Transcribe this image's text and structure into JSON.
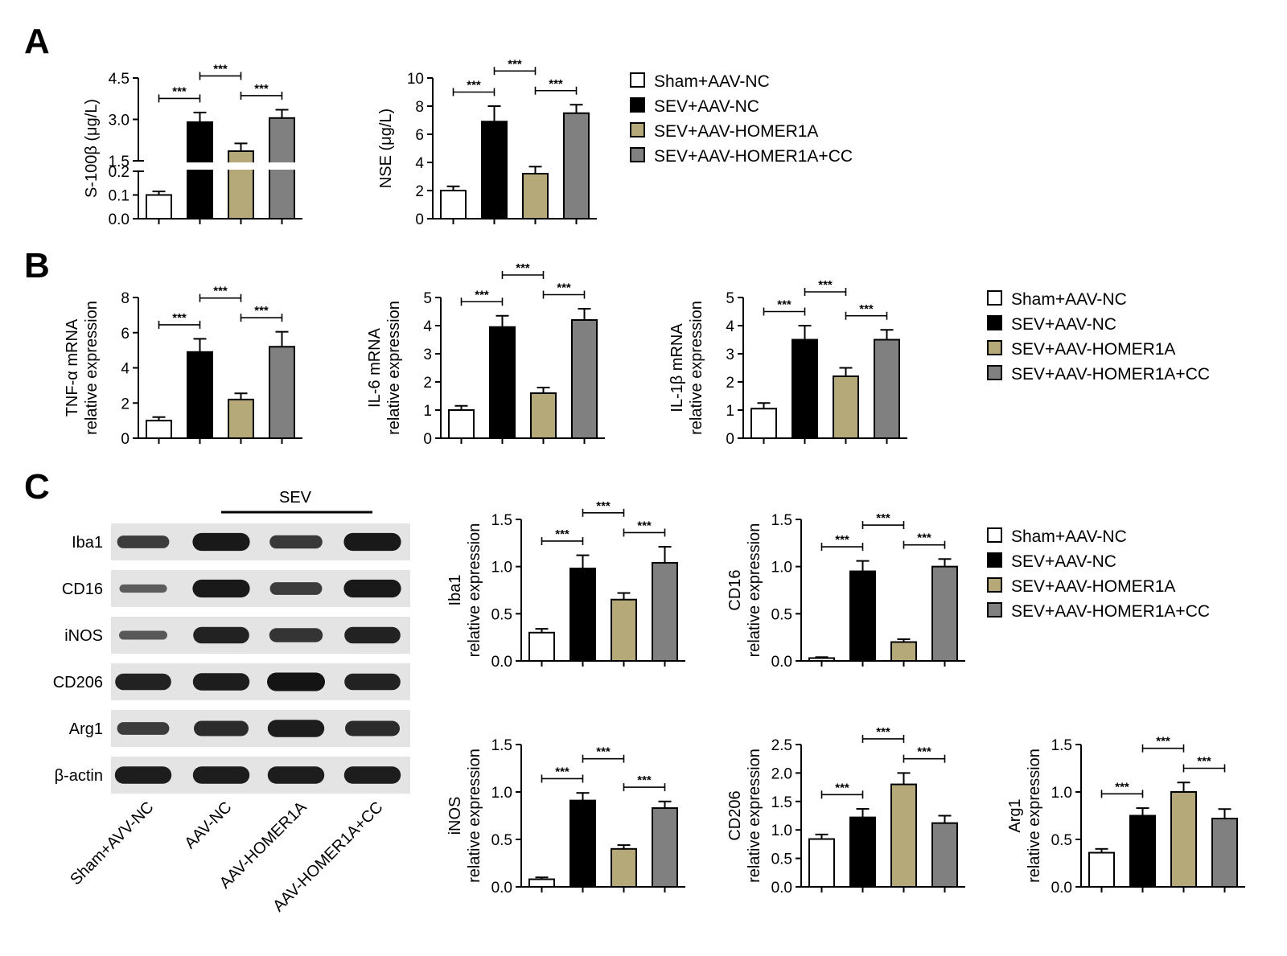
{
  "panels": {
    "A": "A",
    "B": "B",
    "C": "C"
  },
  "groups": [
    "Sham+AAV-NC",
    "SEV+AAV-NC",
    "SEV+AAV-HOMER1A",
    "SEV+AAV-HOMER1A+CC"
  ],
  "colors": [
    "#ffffff",
    "#000000",
    "#b5a97a",
    "#808080"
  ],
  "significance_label": "***",
  "western_blot": {
    "group_label": "SEV",
    "lanes": [
      "Sham+AVV-NC",
      "AAV-NC",
      "AAV-HOMER1A",
      "AAV-HOMER1A+CC"
    ],
    "bands": [
      {
        "name": "Iba1",
        "intensity": [
          0.55,
          0.95,
          0.6,
          0.95
        ]
      },
      {
        "name": "CD16",
        "intensity": [
          0.2,
          0.95,
          0.55,
          0.95
        ]
      },
      {
        "name": "iNOS",
        "intensity": [
          0.25,
          0.85,
          0.65,
          0.85
        ]
      },
      {
        "name": "CD206",
        "intensity": [
          0.85,
          0.9,
          1.0,
          0.85
        ]
      },
      {
        "name": "Arg1",
        "intensity": [
          0.55,
          0.75,
          0.9,
          0.75
        ]
      },
      {
        "name": "β-actin",
        "intensity": [
          0.9,
          0.9,
          0.9,
          0.9
        ]
      }
    ]
  },
  "chart_data": [
    {
      "type": "bar",
      "id": "s100b",
      "panel": "A",
      "ylabel": "S-100β (μg/L)",
      "categories": [
        "Sham+AAV-NC",
        "SEV+AAV-NC",
        "SEV+AAV-HOMER1A",
        "SEV+AAV-HOMER1A+CC"
      ],
      "values": [
        0.1,
        2.9,
        1.85,
        3.05
      ],
      "errors": [
        0.015,
        0.35,
        0.28,
        0.3
      ],
      "broken_axis": {
        "lower": [
          0.0,
          0.2
        ],
        "upper": [
          1.5,
          4.5
        ]
      },
      "yticks": [
        "0.0",
        "0.1",
        "0.2",
        "1.5",
        "3.0",
        "4.5"
      ],
      "significance": [
        [
          0,
          1
        ],
        [
          1,
          2
        ],
        [
          2,
          3
        ]
      ]
    },
    {
      "type": "bar",
      "id": "nse",
      "panel": "A",
      "ylabel": "NSE (μg/L)",
      "categories": [
        "Sham+AAV-NC",
        "SEV+AAV-NC",
        "SEV+AAV-HOMER1A",
        "SEV+AAV-HOMER1A+CC"
      ],
      "values": [
        2.0,
        6.9,
        3.2,
        7.5
      ],
      "errors": [
        0.3,
        1.1,
        0.5,
        0.6
      ],
      "ylim": [
        0,
        10
      ],
      "yticks": [
        "0",
        "2",
        "4",
        "6",
        "8",
        "10"
      ],
      "significance": [
        [
          0,
          1
        ],
        [
          1,
          2
        ],
        [
          2,
          3
        ]
      ]
    },
    {
      "type": "bar",
      "id": "tnfa",
      "panel": "B",
      "ylabel": [
        "TNF-α mRNA",
        "relative expression"
      ],
      "categories": [
        "Sham+AAV-NC",
        "SEV+AAV-NC",
        "SEV+AAV-HOMER1A",
        "SEV+AAV-HOMER1A+CC"
      ],
      "values": [
        1.0,
        4.9,
        2.2,
        5.2
      ],
      "errors": [
        0.2,
        0.75,
        0.35,
        0.85
      ],
      "ylim": [
        0,
        8
      ],
      "yticks": [
        "0",
        "2",
        "4",
        "6",
        "8"
      ],
      "significance": [
        [
          0,
          1
        ],
        [
          1,
          2
        ],
        [
          2,
          3
        ]
      ]
    },
    {
      "type": "bar",
      "id": "il6",
      "panel": "B",
      "ylabel": [
        "IL-6 mRNA",
        "relative expression"
      ],
      "categories": [
        "Sham+AAV-NC",
        "SEV+AAV-NC",
        "SEV+AAV-HOMER1A",
        "SEV+AAV-HOMER1A+CC"
      ],
      "values": [
        1.0,
        3.95,
        1.6,
        4.2
      ],
      "errors": [
        0.15,
        0.4,
        0.2,
        0.4
      ],
      "ylim": [
        0,
        5
      ],
      "yticks": [
        "0",
        "1",
        "2",
        "3",
        "4",
        "5"
      ],
      "significance": [
        [
          0,
          1
        ],
        [
          1,
          2
        ],
        [
          2,
          3
        ]
      ]
    },
    {
      "type": "bar",
      "id": "il1b",
      "panel": "B",
      "ylabel": [
        "IL-1β mRNA",
        "relative expression"
      ],
      "categories": [
        "Sham+AAV-NC",
        "SEV+AAV-NC",
        "SEV+AAV-HOMER1A",
        "SEV+AAV-HOMER1A+CC"
      ],
      "values": [
        1.05,
        3.5,
        2.2,
        3.5
      ],
      "errors": [
        0.2,
        0.5,
        0.3,
        0.35
      ],
      "ylim": [
        0,
        5
      ],
      "yticks": [
        "0",
        "1",
        "2",
        "3",
        "4",
        "5"
      ],
      "significance": [
        [
          0,
          1
        ],
        [
          1,
          2
        ],
        [
          2,
          3
        ]
      ]
    },
    {
      "type": "bar",
      "id": "iba1",
      "panel": "C",
      "ylabel": [
        "Iba1",
        "relative expression"
      ],
      "categories": [
        "Sham+AAV-NC",
        "SEV+AAV-NC",
        "SEV+AAV-HOMER1A",
        "SEV+AAV-HOMER1A+CC"
      ],
      "values": [
        0.3,
        0.98,
        0.65,
        1.04
      ],
      "errors": [
        0.04,
        0.14,
        0.07,
        0.17
      ],
      "ylim": [
        0,
        1.5
      ],
      "yticks": [
        "0.0",
        "0.5",
        "1.0",
        "1.5"
      ],
      "significance": [
        [
          0,
          1
        ],
        [
          1,
          2
        ],
        [
          2,
          3
        ]
      ]
    },
    {
      "type": "bar",
      "id": "cd16",
      "panel": "C",
      "ylabel": [
        "CD16",
        "relative expression"
      ],
      "categories": [
        "Sham+AAV-NC",
        "SEV+AAV-NC",
        "SEV+AAV-HOMER1A",
        "SEV+AAV-HOMER1A+CC"
      ],
      "values": [
        0.03,
        0.95,
        0.2,
        1.0
      ],
      "errors": [
        0.01,
        0.11,
        0.03,
        0.08
      ],
      "ylim": [
        0,
        1.5
      ],
      "yticks": [
        "0.0",
        "0.5",
        "1.0",
        "1.5"
      ],
      "significance": [
        [
          0,
          1
        ],
        [
          1,
          2
        ],
        [
          2,
          3
        ]
      ]
    },
    {
      "type": "bar",
      "id": "inos",
      "panel": "C",
      "ylabel": [
        "iNOS",
        "relative expression"
      ],
      "categories": [
        "Sham+AAV-NC",
        "SEV+AAV-NC",
        "SEV+AAV-HOMER1A",
        "SEV+AAV-HOMER1A+CC"
      ],
      "values": [
        0.08,
        0.91,
        0.4,
        0.83
      ],
      "errors": [
        0.02,
        0.08,
        0.04,
        0.07
      ],
      "ylim": [
        0,
        1.5
      ],
      "yticks": [
        "0.0",
        "0.5",
        "1.0",
        "1.5"
      ],
      "significance": [
        [
          0,
          1
        ],
        [
          1,
          2
        ],
        [
          2,
          3
        ]
      ]
    },
    {
      "type": "bar",
      "id": "cd206",
      "panel": "C",
      "ylabel": [
        "CD206",
        "relative expression"
      ],
      "categories": [
        "Sham+AAV-NC",
        "SEV+AAV-NC",
        "SEV+AAV-HOMER1A",
        "SEV+AAV-HOMER1A+CC"
      ],
      "values": [
        0.84,
        1.22,
        1.8,
        1.12
      ],
      "errors": [
        0.08,
        0.15,
        0.2,
        0.13
      ],
      "ylim": [
        0,
        2.5
      ],
      "yticks": [
        "0.0",
        "0.5",
        "1.0",
        "1.5",
        "2.0",
        "2.5"
      ],
      "significance": [
        [
          0,
          1
        ],
        [
          1,
          2
        ],
        [
          2,
          3
        ]
      ]
    },
    {
      "type": "bar",
      "id": "arg1",
      "panel": "C",
      "ylabel": [
        "Arg1",
        "relative expression"
      ],
      "categories": [
        "Sham+AAV-NC",
        "SEV+AAV-NC",
        "SEV+AAV-HOMER1A",
        "SEV+AAV-HOMER1A+CC"
      ],
      "values": [
        0.36,
        0.75,
        1.0,
        0.72
      ],
      "errors": [
        0.04,
        0.08,
        0.1,
        0.1
      ],
      "ylim": [
        0,
        1.5
      ],
      "yticks": [
        "0.0",
        "0.5",
        "1.0",
        "1.5"
      ],
      "significance": [
        [
          0,
          1
        ],
        [
          1,
          2
        ],
        [
          2,
          3
        ]
      ]
    }
  ]
}
